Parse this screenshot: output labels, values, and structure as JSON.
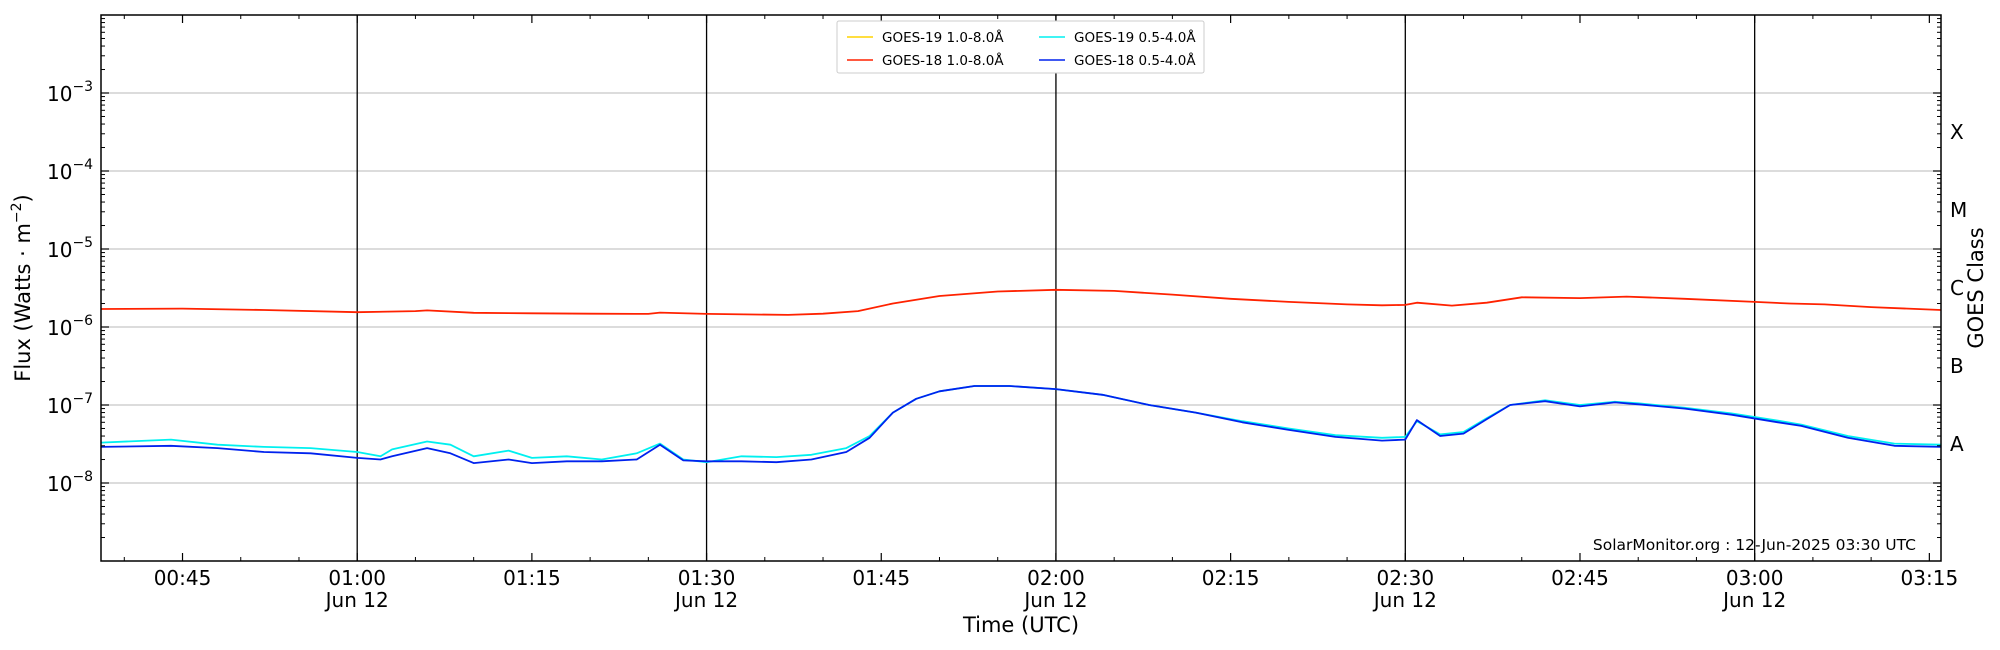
{
  "chart_data": {
    "type": "line",
    "title": "",
    "xlabel": "Time (UTC)",
    "ylabel_main": "Flux (Watts · m",
    "ylabel_exp": "−2",
    "ylabel_close": ")",
    "right_label": "GOES Class",
    "y_scale": "log",
    "ylim": [
      1e-09,
      0.01
    ],
    "y_ticks": [
      {
        "exp": -8,
        "base": "10",
        "sup": "−8"
      },
      {
        "exp": -7,
        "base": "10",
        "sup": "−7"
      },
      {
        "exp": -6,
        "base": "10",
        "sup": "−6"
      },
      {
        "exp": -5,
        "base": "10",
        "sup": "−5"
      },
      {
        "exp": -4,
        "base": "10",
        "sup": "−4"
      },
      {
        "exp": -3,
        "base": "10",
        "sup": "−3"
      }
    ],
    "xlim": [
      "00:38",
      "03:16"
    ],
    "x_ticks": [
      {
        "time": "00:45",
        "label": "00:45",
        "date": ""
      },
      {
        "time": "01:00",
        "label": "01:00",
        "date": "Jun 12"
      },
      {
        "time": "01:15",
        "label": "01:15",
        "date": ""
      },
      {
        "time": "01:30",
        "label": "01:30",
        "date": "Jun 12"
      },
      {
        "time": "01:45",
        "label": "01:45",
        "date": ""
      },
      {
        "time": "02:00",
        "label": "02:00",
        "date": "Jun 12"
      },
      {
        "time": "02:15",
        "label": "02:15",
        "date": ""
      },
      {
        "time": "02:30",
        "label": "02:30",
        "date": "Jun 12"
      },
      {
        "time": "02:45",
        "label": "02:45",
        "date": ""
      },
      {
        "time": "03:00",
        "label": "03:00",
        "date": "Jun 12"
      },
      {
        "time": "03:15",
        "label": "03:15",
        "date": ""
      }
    ],
    "vertical_lines": [
      "01:00",
      "01:30",
      "02:00",
      "02:30",
      "03:00"
    ],
    "grid": "horizontal",
    "classes": [
      {
        "label": "A",
        "flux": 1e-08
      },
      {
        "label": "B",
        "flux": 1e-07
      },
      {
        "label": "C",
        "flux": 1e-06
      },
      {
        "label": "M",
        "flux": 1e-05
      },
      {
        "label": "X",
        "flux": 0.0001
      }
    ],
    "legend_position": "top-center",
    "legend": [
      {
        "name": "GOES-19 1.0-8.0Å",
        "color": "#ffd400"
      },
      {
        "name": "GOES-19 0.5-4.0Å",
        "color": "#00f0f0"
      },
      {
        "name": "GOES-18 1.0-8.0Å",
        "color": "#ff2200"
      },
      {
        "name": "GOES-18 0.5-4.0Å",
        "color": "#0022ee"
      }
    ],
    "credit": "SolarMonitor.org : 12-Jun-2025 03:30 UTC",
    "series": [
      {
        "name": "GOES-18 1.0-8.0Å",
        "color": "#ff2200",
        "x": [
          "00:38",
          "00:45",
          "00:52",
          "01:00",
          "01:05",
          "01:06",
          "01:10",
          "01:15",
          "01:20",
          "01:25",
          "01:26",
          "01:30",
          "01:37",
          "01:40",
          "01:43",
          "01:46",
          "01:50",
          "01:55",
          "02:00",
          "02:05",
          "02:10",
          "02:15",
          "02:20",
          "02:25",
          "02:28",
          "02:30",
          "02:31",
          "02:34",
          "02:37",
          "02:40",
          "02:45",
          "02:49",
          "02:54",
          "03:00",
          "03:03",
          "03:06",
          "03:10",
          "03:16"
        ],
        "y": [
          1.7e-06,
          1.72e-06,
          1.65e-06,
          1.55e-06,
          1.6e-06,
          1.63e-06,
          1.52e-06,
          1.5e-06,
          1.48e-06,
          1.47e-06,
          1.53e-06,
          1.47e-06,
          1.43e-06,
          1.48e-06,
          1.6e-06,
          2e-06,
          2.5e-06,
          2.85e-06,
          3e-06,
          2.9e-06,
          2.6e-06,
          2.3e-06,
          2.1e-06,
          1.95e-06,
          1.9e-06,
          1.92e-06,
          2.05e-06,
          1.88e-06,
          2.05e-06,
          2.4e-06,
          2.35e-06,
          2.45e-06,
          2.3e-06,
          2.1e-06,
          2e-06,
          1.95e-06,
          1.8e-06,
          1.65e-06
        ]
      },
      {
        "name": "GOES-19 0.5-4.0Å",
        "color": "#00f0f0",
        "x": [
          "00:38",
          "00:44",
          "00:48",
          "00:52",
          "00:56",
          "01:00",
          "01:02",
          "01:03",
          "01:06",
          "01:08",
          "01:10",
          "01:13",
          "01:15",
          "01:18",
          "01:21",
          "01:24",
          "01:26",
          "01:28",
          "01:30",
          "01:33",
          "01:36",
          "01:39",
          "01:42",
          "01:44",
          "01:46",
          "01:48",
          "01:50",
          "01:53",
          "01:56",
          "02:00",
          "02:04",
          "02:08",
          "02:12",
          "02:16",
          "02:20",
          "02:24",
          "02:28",
          "02:30",
          "02:31",
          "02:33",
          "02:35",
          "02:37",
          "02:39",
          "02:42",
          "02:45",
          "02:48",
          "02:50",
          "02:54",
          "02:58",
          "03:02",
          "03:04",
          "03:08",
          "03:12",
          "03:16"
        ],
        "y": [
          3.3e-08,
          3.6e-08,
          3.1e-08,
          2.9e-08,
          2.8e-08,
          2.5e-08,
          2.2e-08,
          2.7e-08,
          3.4e-08,
          3.1e-08,
          2.2e-08,
          2.6e-08,
          2.1e-08,
          2.2e-08,
          2e-08,
          2.4e-08,
          3.2e-08,
          2e-08,
          1.85e-08,
          2.2e-08,
          2.15e-08,
          2.3e-08,
          2.8e-08,
          4e-08,
          8e-08,
          1.2e-07,
          1.5e-07,
          1.75e-07,
          1.75e-07,
          1.6e-07,
          1.35e-07,
          1e-07,
          8e-08,
          6.2e-08,
          5e-08,
          4.1e-08,
          3.8e-08,
          3.9e-08,
          6.2e-08,
          4.2e-08,
          4.5e-08,
          6.8e-08,
          1e-07,
          1.15e-07,
          1e-07,
          1.1e-07,
          1.05e-07,
          9.2e-08,
          7.8e-08,
          6.3e-08,
          5.6e-08,
          4e-08,
          3.2e-08,
          3.1e-08
        ]
      },
      {
        "name": "GOES-18 0.5-4.0Å",
        "color": "#0022ee",
        "x": [
          "00:38",
          "00:44",
          "00:48",
          "00:52",
          "00:56",
          "01:00",
          "01:02",
          "01:03",
          "01:06",
          "01:08",
          "01:10",
          "01:13",
          "01:15",
          "01:18",
          "01:21",
          "01:24",
          "01:26",
          "01:28",
          "01:30",
          "01:33",
          "01:36",
          "01:39",
          "01:42",
          "01:44",
          "01:46",
          "01:48",
          "01:50",
          "01:53",
          "01:56",
          "02:00",
          "02:04",
          "02:08",
          "02:12",
          "02:16",
          "02:20",
          "02:24",
          "02:28",
          "02:30",
          "02:31",
          "02:33",
          "02:35",
          "02:37",
          "02:39",
          "02:42",
          "02:45",
          "02:48",
          "02:50",
          "02:54",
          "02:58",
          "03:02",
          "03:04",
          "03:08",
          "03:12",
          "03:16"
        ],
        "y": [
          2.9e-08,
          3e-08,
          2.8e-08,
          2.5e-08,
          2.4e-08,
          2.1e-08,
          2e-08,
          2.2e-08,
          2.8e-08,
          2.4e-08,
          1.8e-08,
          2e-08,
          1.8e-08,
          1.9e-08,
          1.9e-08,
          2e-08,
          3.1e-08,
          1.95e-08,
          1.9e-08,
          1.9e-08,
          1.85e-08,
          2e-08,
          2.5e-08,
          3.8e-08,
          8e-08,
          1.2e-07,
          1.5e-07,
          1.75e-07,
          1.75e-07,
          1.6e-07,
          1.35e-07,
          1e-07,
          8e-08,
          6e-08,
          4.8e-08,
          3.9e-08,
          3.5e-08,
          3.6e-08,
          6.4e-08,
          4e-08,
          4.3e-08,
          6.6e-08,
          1e-07,
          1.12e-07,
          9.6e-08,
          1.08e-07,
          1.02e-07,
          9e-08,
          7.5e-08,
          6e-08,
          5.4e-08,
          3.8e-08,
          3e-08,
          2.9e-08
        ]
      }
    ]
  }
}
